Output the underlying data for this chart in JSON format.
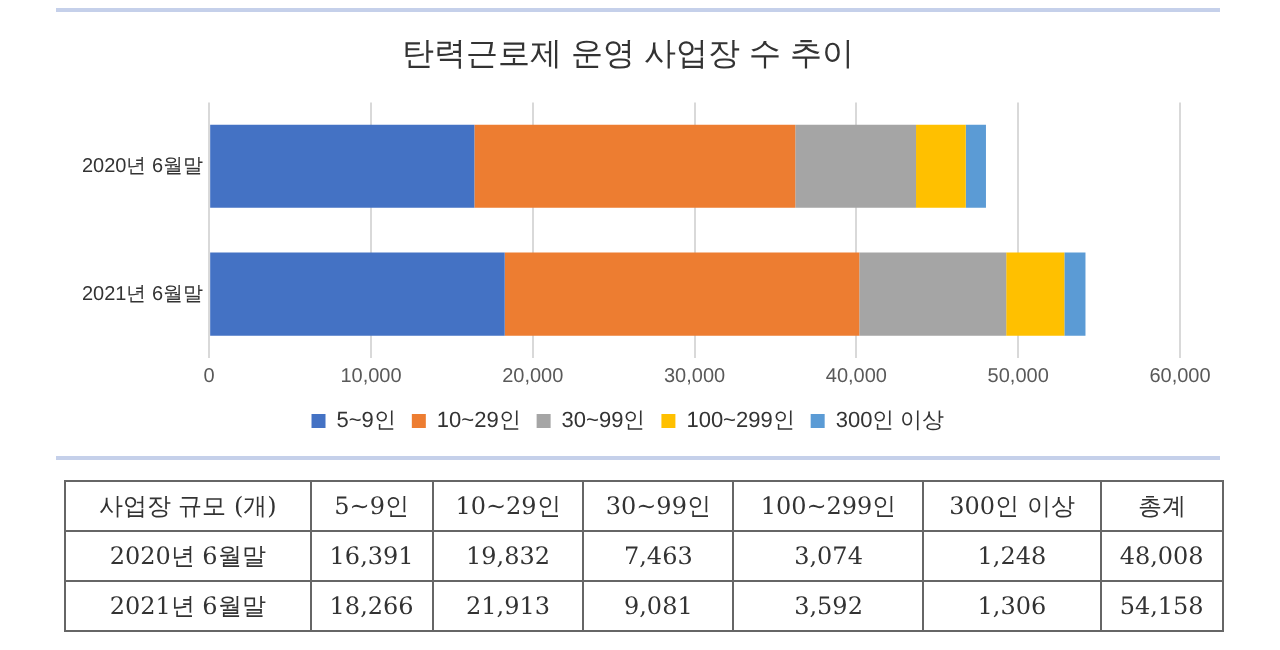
{
  "chart_data": [
    {
      "type": "bar",
      "orientation": "horizontal",
      "stacked": true,
      "title": "탄력근로제 운영 사업장 수 추이",
      "categories": [
        "2020년 6월말",
        "2021년 6월말"
      ],
      "series": [
        {
          "name": "5~9인",
          "color": "#4472c4",
          "values": [
            16391,
            18266
          ]
        },
        {
          "name": "10~29인",
          "color": "#ed7d31",
          "values": [
            19832,
            21913
          ]
        },
        {
          "name": "30~99인",
          "color": "#a5a5a5",
          "values": [
            7463,
            9081
          ]
        },
        {
          "name": "100~299인",
          "color": "#ffc000",
          "values": [
            3074,
            3592
          ]
        },
        {
          "name": "300인 이상",
          "color": "#5b9bd5",
          "values": [
            1248,
            1306
          ]
        }
      ],
      "xlim": [
        0,
        60000
      ],
      "xticks": [
        0,
        {
          "value": 10000,
          "label": "10,000"
        },
        {
          "value": 20000,
          "label": "20,000"
        },
        {
          "value": 30000,
          "label": "30,000"
        },
        {
          "value": 40000,
          "label": "40,000"
        },
        {
          "value": 50000,
          "label": "50,000"
        },
        {
          "value": 60000,
          "label": "60,000"
        }
      ],
      "grid": "x",
      "legend": "bottom"
    },
    {
      "type": "other",
      "annotations": [
        "사업장 규모 (개)"
      ],
      "categories": [
        "5~9인",
        "10~29인",
        "30~99인",
        "100~299인",
        "300인 이상",
        "총계"
      ],
      "y_categories": [
        "2020년 6월말",
        "2021년 6월말"
      ],
      "cell_labels": [
        [
          "16,391",
          "19,832",
          "7,463",
          "3,074",
          "1,248",
          "48,008"
        ],
        [
          "18,266",
          "21,913",
          "9,081",
          "3,592",
          "1,306",
          "54,158"
        ]
      ],
      "data_labels": true
    }
  ]
}
